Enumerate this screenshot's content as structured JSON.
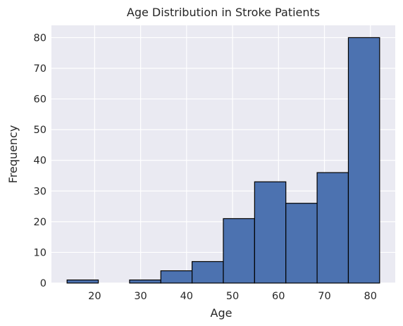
{
  "chart_data": {
    "type": "bar",
    "subtype": "histogram",
    "title": "Age Distribution in Stroke Patients",
    "xlabel": "Age",
    "ylabel": "Frequency",
    "bins": [
      {
        "start": 14.0,
        "end": 20.8,
        "value": 1
      },
      {
        "start": 20.8,
        "end": 27.6,
        "value": 0
      },
      {
        "start": 27.6,
        "end": 34.4,
        "value": 1
      },
      {
        "start": 34.4,
        "end": 41.2,
        "value": 4
      },
      {
        "start": 41.2,
        "end": 48.0,
        "value": 7
      },
      {
        "start": 48.0,
        "end": 54.8,
        "value": 21
      },
      {
        "start": 54.8,
        "end": 61.6,
        "value": 33
      },
      {
        "start": 61.6,
        "end": 68.4,
        "value": 26
      },
      {
        "start": 68.4,
        "end": 75.2,
        "value": 36
      },
      {
        "start": 75.2,
        "end": 82.0,
        "value": 80
      }
    ],
    "xlim": [
      10.6,
      85.4
    ],
    "ylim": [
      0,
      84
    ],
    "xticks": [
      20,
      30,
      40,
      50,
      60,
      70,
      80
    ],
    "yticks": [
      0,
      10,
      20,
      30,
      40,
      50,
      60,
      70,
      80
    ],
    "grid": true,
    "colors": {
      "bar_fill": "#4C72B0",
      "bar_edge": "#000000",
      "plot_background": "#EAEAF2",
      "grid": "#FFFFFF"
    }
  }
}
